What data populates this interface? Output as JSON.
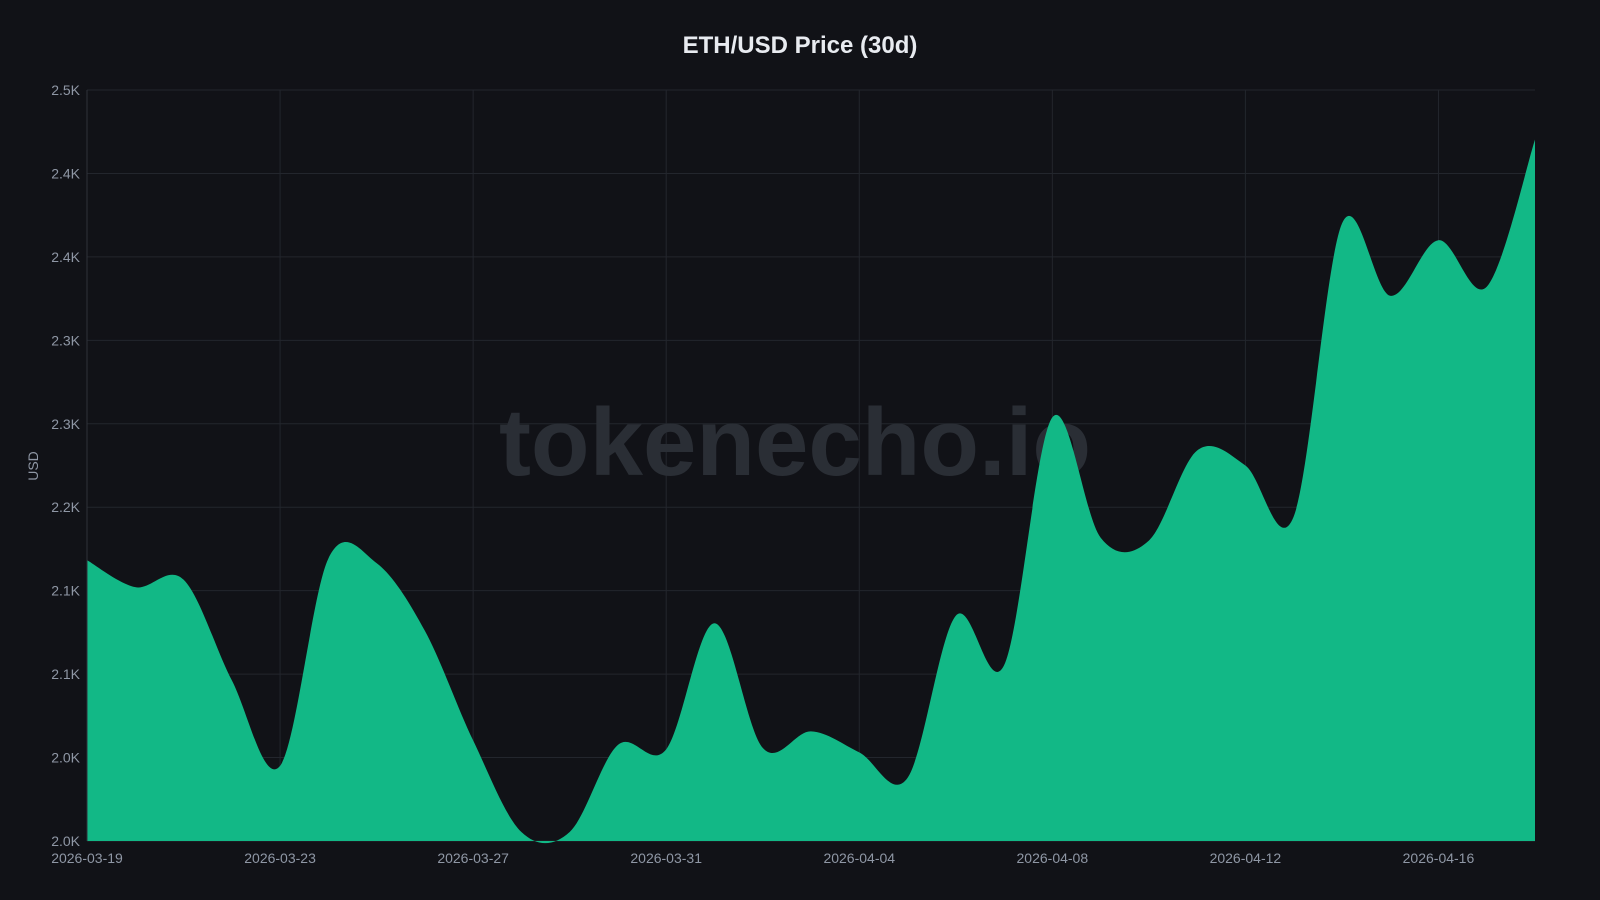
{
  "chart_data": {
    "type": "area",
    "title": "ETH/USD Price (30d)",
    "xlabel": "",
    "ylabel": "USD",
    "ylim": [
      2000,
      2500
    ],
    "grid": true,
    "legend": null,
    "watermark": "tokenecho.io",
    "color": "#12b886",
    "x_tick_labels": [
      "2026-03-19",
      "2026-03-23",
      "2026-03-27",
      "2026-03-31",
      "2026-04-04",
      "2026-04-08",
      "2026-04-12",
      "2026-04-16"
    ],
    "y_tick_labels": [
      "2.0K",
      "2.0K",
      "2.1K",
      "2.1K",
      "2.2K",
      "2.3K",
      "2.3K",
      "2.4K",
      "2.4K",
      "2.5K"
    ],
    "x": [
      "2026-03-19",
      "2026-03-20",
      "2026-03-21",
      "2026-03-22",
      "2026-03-23",
      "2026-03-24",
      "2026-03-25",
      "2026-03-26",
      "2026-03-27",
      "2026-03-28",
      "2026-03-29",
      "2026-03-30",
      "2026-03-31",
      "2026-04-01",
      "2026-04-02",
      "2026-04-03",
      "2026-04-04",
      "2026-04-05",
      "2026-04-06",
      "2026-04-07",
      "2026-04-08",
      "2026-04-09",
      "2026-04-10",
      "2026-04-11",
      "2026-04-12",
      "2026-04-13",
      "2026-04-14",
      "2026-04-15",
      "2026-04-16",
      "2026-04-17",
      "2026-04-18"
    ],
    "values": [
      2187,
      2169,
      2174,
      2107,
      2050,
      2188,
      2185,
      2140,
      2067,
      2006,
      2006,
      2064,
      2061,
      2145,
      2062,
      2073,
      2059,
      2042,
      2150,
      2117,
      2282,
      2202,
      2200,
      2260,
      2250,
      2216,
      2411,
      2363,
      2400,
      2369,
      2467
    ]
  }
}
